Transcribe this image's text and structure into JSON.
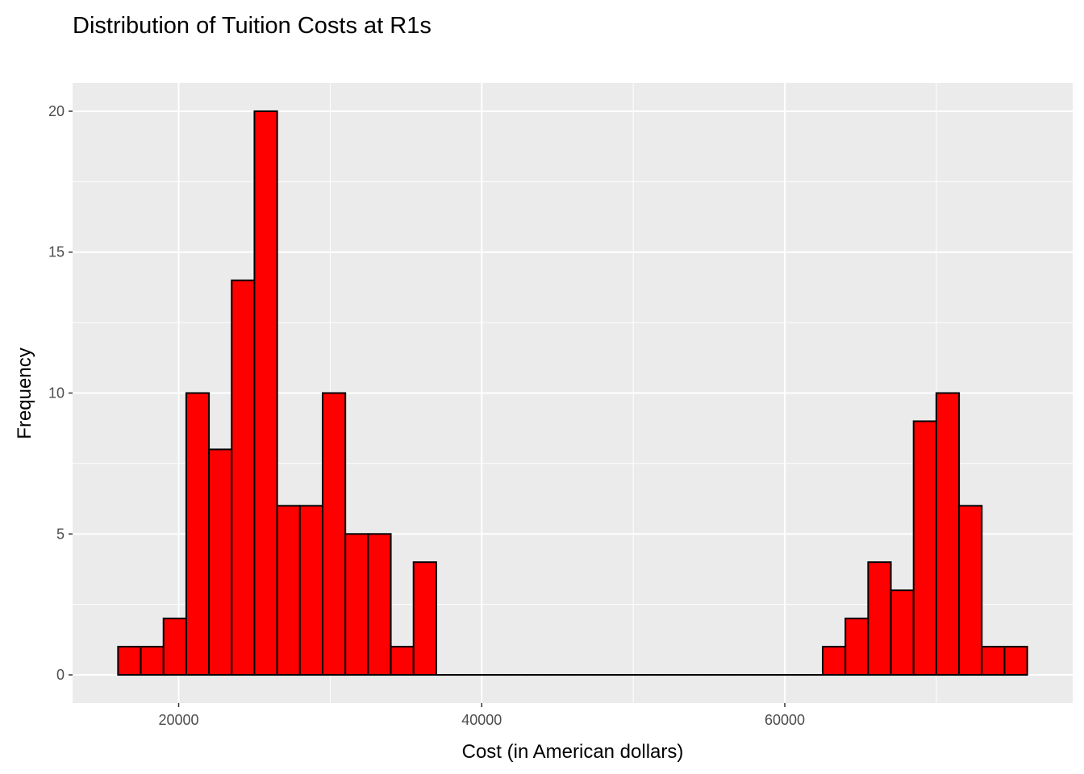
{
  "chart_data": {
    "type": "bar",
    "title": "Distribution of Tuition Costs at R1s",
    "xlabel": "Cost (in American dollars)",
    "ylabel": "Frequency",
    "xlim": [
      13000,
      79000
    ],
    "ylim": [
      -1,
      21
    ],
    "x_ticks": [
      20000,
      40000,
      60000
    ],
    "x_tick_labels": [
      "20000",
      "40000",
      "60000"
    ],
    "y_ticks": [
      0,
      5,
      10,
      15,
      20
    ],
    "y_tick_labels": [
      "0",
      "5",
      "10",
      "15",
      "20"
    ],
    "bin_width": 1500,
    "bin_starts": [
      16000,
      17500,
      19000,
      20500,
      22000,
      23500,
      25000,
      26500,
      28000,
      29500,
      31000,
      32500,
      34000,
      35500,
      37000,
      38500,
      40000,
      41500,
      43000,
      44500,
      46000,
      47500,
      49000,
      50500,
      52000,
      53500,
      55000,
      56500,
      58000,
      59500,
      61000,
      62500,
      64000,
      65500,
      67000,
      68500,
      70000,
      71500,
      73000,
      74500
    ],
    "values": [
      1,
      1,
      2,
      10,
      8,
      14,
      20,
      6,
      6,
      10,
      5,
      5,
      1,
      4,
      0,
      0,
      0,
      0,
      0,
      0,
      0,
      0,
      0,
      0,
      0,
      0,
      0,
      0,
      0,
      0,
      0,
      1,
      2,
      4,
      3,
      9,
      10,
      6,
      1,
      1
    ],
    "grid": true,
    "bar_color": "#ff0000",
    "bar_outline": "#000000",
    "panel_background": "#ebebeb",
    "grid_color": "#ffffff"
  }
}
